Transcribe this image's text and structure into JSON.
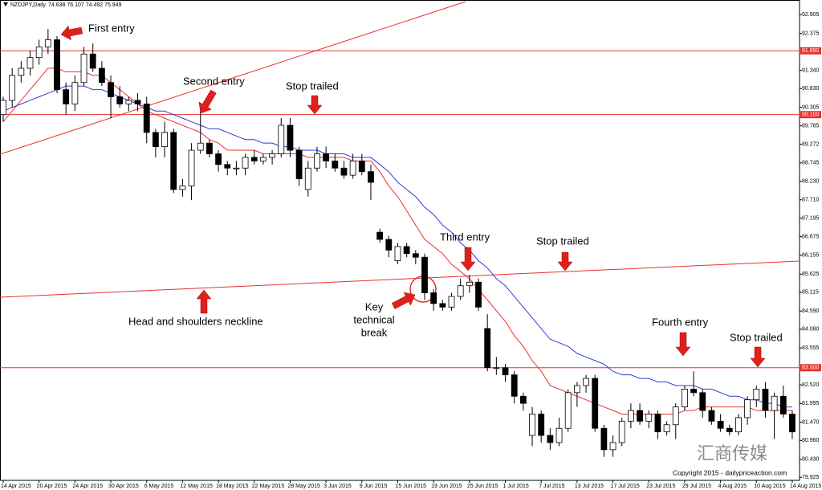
{
  "chart_data": {
    "type": "candlestick",
    "symbol": "NZDJPY,Daily",
    "quote": "74.638 76.107 74.492 75.949",
    "up_color": "#ffffff",
    "down_color": "#000000",
    "categories": [
      "14 Apr 2015",
      null,
      null,
      null,
      "20 Apr 2015",
      null,
      null,
      null,
      "24 Apr 2015",
      null,
      null,
      null,
      "30 Apr 2015",
      null,
      null,
      null,
      "6 May 2015",
      null,
      null,
      null,
      "12 May 2015",
      null,
      null,
      null,
      "18 May 2015",
      null,
      null,
      null,
      "22 May 2015",
      null,
      null,
      null,
      "28 May 2015",
      null,
      null,
      null,
      "3 Jun 2015",
      null,
      null,
      null,
      "9 Jun 2015",
      null,
      null,
      null,
      "15 Jun 2015",
      null,
      null,
      null,
      "19 Jun 2015",
      null,
      null,
      null,
      "25 Jun 2015",
      null,
      null,
      null,
      "1 Jul 2015",
      null,
      null,
      null,
      "7 Jul 2015",
      null,
      null,
      null,
      "13 Jul 2015",
      null,
      null,
      null,
      "17 Jul 2015",
      null,
      null,
      null,
      "23 Jul 2015",
      null,
      null,
      null,
      "29 Jul 2015",
      null,
      null,
      null,
      "4 Aug 2015",
      null,
      null,
      null,
      "10 Aug 2015",
      null,
      null,
      null,
      "14 Aug 2015"
    ],
    "ohlc": [
      [
        90.1,
        90.6,
        89.9,
        90.5
      ],
      [
        90.5,
        91.4,
        90.3,
        91.2
      ],
      [
        91.2,
        91.6,
        91.0,
        91.4
      ],
      [
        91.4,
        91.9,
        91.2,
        91.7
      ],
      [
        91.7,
        92.2,
        91.5,
        92.0
      ],
      [
        92.0,
        92.5,
        91.8,
        92.2
      ],
      [
        92.2,
        92.3,
        90.7,
        90.8
      ],
      [
        90.8,
        91.0,
        90.1,
        90.4
      ],
      [
        90.4,
        91.2,
        90.2,
        91.0
      ],
      [
        91.0,
        92.0,
        90.9,
        91.8
      ],
      [
        91.8,
        92.1,
        91.3,
        91.4
      ],
      [
        91.4,
        91.6,
        90.9,
        91.0
      ],
      [
        91.0,
        91.2,
        90.0,
        90.6
      ],
      [
        90.6,
        90.9,
        90.3,
        90.4
      ],
      [
        90.4,
        90.6,
        90.2,
        90.5
      ],
      [
        90.5,
        90.7,
        90.2,
        90.4
      ],
      [
        90.4,
        90.6,
        89.3,
        89.6
      ],
      [
        89.6,
        89.7,
        88.9,
        89.2
      ],
      [
        89.2,
        89.9,
        88.9,
        89.6
      ],
      [
        89.6,
        89.7,
        87.9,
        88.0
      ],
      [
        88.0,
        88.3,
        87.8,
        88.1
      ],
      [
        88.1,
        89.3,
        87.7,
        89.1
      ],
      [
        89.1,
        90.3,
        89.0,
        89.3
      ],
      [
        89.3,
        89.4,
        88.9,
        89.0
      ],
      [
        89.0,
        89.1,
        88.5,
        88.7
      ],
      [
        88.7,
        88.8,
        88.4,
        88.6
      ],
      [
        88.6,
        88.8,
        88.4,
        88.6
      ],
      [
        88.6,
        89.0,
        88.4,
        88.9
      ],
      [
        88.9,
        89.1,
        88.7,
        88.8
      ],
      [
        88.8,
        89.0,
        88.7,
        88.9
      ],
      [
        88.9,
        89.1,
        88.7,
        89.0
      ],
      [
        89.0,
        90.0,
        88.9,
        89.8
      ],
      [
        89.8,
        90.0,
        88.9,
        89.1
      ],
      [
        89.1,
        89.2,
        88.1,
        88.3
      ],
      [
        88.0,
        88.8,
        87.8,
        88.6
      ],
      [
        88.6,
        89.2,
        88.5,
        89.0
      ],
      [
        89.0,
        89.2,
        88.6,
        88.8
      ],
      [
        88.8,
        89.0,
        88.5,
        88.6
      ],
      [
        88.6,
        88.8,
        88.3,
        88.4
      ],
      [
        88.4,
        89.0,
        88.3,
        88.8
      ],
      [
        88.8,
        89.0,
        88.4,
        88.5
      ],
      [
        88.5,
        88.7,
        87.7,
        88.2
      ],
      [
        86.8,
        86.9,
        86.5,
        86.6
      ],
      [
        86.6,
        86.7,
        86.1,
        86.3
      ],
      [
        86.0,
        86.5,
        85.9,
        86.4
      ],
      [
        86.4,
        86.5,
        86.1,
        86.2
      ],
      [
        86.2,
        86.3,
        85.9,
        86.1
      ],
      [
        86.1,
        86.2,
        84.9,
        85.1
      ],
      [
        85.1,
        85.2,
        84.6,
        84.8
      ],
      [
        84.8,
        84.9,
        84.6,
        84.7
      ],
      [
        84.7,
        85.1,
        84.6,
        85.0
      ],
      [
        85.0,
        85.5,
        84.9,
        85.3
      ],
      [
        85.3,
        85.6,
        85.1,
        85.4
      ],
      [
        85.4,
        85.5,
        84.6,
        84.7
      ],
      [
        84.1,
        84.5,
        82.9,
        83.0
      ],
      [
        83.0,
        83.3,
        82.8,
        83.0
      ],
      [
        83.0,
        83.1,
        82.6,
        82.8
      ],
      [
        82.8,
        82.9,
        82.0,
        82.2
      ],
      [
        82.2,
        82.3,
        81.8,
        82.0
      ],
      [
        81.1,
        81.9,
        80.8,
        81.7
      ],
      [
        81.7,
        81.8,
        80.9,
        81.1
      ],
      [
        81.1,
        81.3,
        80.7,
        80.9
      ],
      [
        80.9,
        81.6,
        80.8,
        81.3
      ],
      [
        81.3,
        82.4,
        81.2,
        82.3
      ],
      [
        82.3,
        82.6,
        81.9,
        82.5
      ],
      [
        82.5,
        82.8,
        82.3,
        82.7
      ],
      [
        82.7,
        82.8,
        81.2,
        81.3
      ],
      [
        81.3,
        81.4,
        80.5,
        80.7
      ],
      [
        80.7,
        81.1,
        80.5,
        80.9
      ],
      [
        80.9,
        81.6,
        80.8,
        81.5
      ],
      [
        81.5,
        82.0,
        81.3,
        81.8
      ],
      [
        81.8,
        82.0,
        81.4,
        81.5
      ],
      [
        81.5,
        81.8,
        81.3,
        81.7
      ],
      [
        81.7,
        81.8,
        81.0,
        81.2
      ],
      [
        81.2,
        81.5,
        81.1,
        81.4
      ],
      [
        81.4,
        82.0,
        81.0,
        81.9
      ],
      [
        81.9,
        82.5,
        81.8,
        82.4
      ],
      [
        82.4,
        82.9,
        82.2,
        82.3
      ],
      [
        82.3,
        82.4,
        81.6,
        81.8
      ],
      [
        81.8,
        81.9,
        81.4,
        81.5
      ],
      [
        81.5,
        81.7,
        81.2,
        81.3
      ],
      [
        81.3,
        81.4,
        81.1,
        81.2
      ],
      [
        81.2,
        81.7,
        81.1,
        81.6
      ],
      [
        81.6,
        82.2,
        81.4,
        82.1
      ],
      [
        82.1,
        82.5,
        81.9,
        82.4
      ],
      [
        82.4,
        82.6,
        81.6,
        81.8
      ],
      [
        81.8,
        82.3,
        81.0,
        82.2
      ],
      [
        82.2,
        82.5,
        81.6,
        81.7
      ],
      [
        81.7,
        81.8,
        81.0,
        81.2
      ]
    ],
    "lines": [
      {
        "color": "#e8322c",
        "values": [
          89.9,
          90.2,
          90.5,
          90.8,
          91.1,
          91.4,
          91.4,
          91.3,
          91.3,
          91.3,
          91.2,
          91.2,
          91.0,
          90.8,
          90.6,
          90.4,
          90.2,
          90.1,
          90.0,
          89.9,
          89.8,
          89.7,
          89.6,
          89.4,
          89.3,
          89.1,
          89.1,
          89.1,
          89.1,
          89.0,
          89.0,
          89.0,
          89.0,
          89.0,
          88.9,
          88.9,
          88.9,
          88.9,
          88.9,
          88.8,
          88.8,
          88.8,
          88.5,
          88.1,
          87.8,
          87.4,
          87.0,
          86.6,
          86.4,
          86.2,
          85.9,
          85.7,
          85.5,
          85.2,
          84.9,
          84.6,
          84.3,
          83.9,
          83.6,
          83.2,
          82.9,
          82.5,
          82.4,
          82.3,
          82.2,
          82.1,
          82.0,
          81.9,
          81.8,
          81.7,
          81.7,
          81.7,
          81.7,
          81.7,
          81.7,
          81.7,
          81.8,
          81.8,
          81.9,
          81.9,
          81.9,
          81.9,
          81.9,
          81.9,
          81.8,
          81.8,
          81.8,
          81.8,
          81.8
        ]
      },
      {
        "color": "#2b3fd6",
        "values": [
          90.2,
          90.3,
          90.4,
          90.5,
          90.6,
          90.7,
          90.8,
          90.9,
          90.9,
          90.9,
          90.8,
          90.8,
          90.7,
          90.6,
          90.5,
          90.4,
          90.3,
          90.2,
          90.2,
          90.1,
          90.0,
          89.9,
          89.8,
          89.7,
          89.7,
          89.6,
          89.5,
          89.4,
          89.4,
          89.3,
          89.3,
          89.2,
          89.2,
          89.1,
          89.1,
          89.1,
          89.0,
          89.0,
          89.0,
          88.9,
          88.9,
          88.9,
          88.7,
          88.5,
          88.2,
          88.0,
          87.8,
          87.5,
          87.3,
          87.0,
          86.8,
          86.5,
          86.3,
          86.0,
          85.8,
          85.5,
          85.3,
          85.0,
          84.7,
          84.4,
          84.1,
          83.8,
          83.7,
          83.6,
          83.4,
          83.3,
          83.2,
          83.1,
          82.9,
          82.8,
          82.8,
          82.7,
          82.7,
          82.6,
          82.6,
          82.5,
          82.5,
          82.5,
          82.4,
          82.4,
          82.3,
          82.2,
          82.2,
          82.1,
          82.1,
          82.0,
          82.0,
          81.9,
          81.9
        ]
      }
    ],
    "hlines": [
      {
        "value": 91.89,
        "label": "91.890",
        "color": "#e8322c"
      },
      {
        "value": 90.1,
        "label": "90.100",
        "color": "#e8322c"
      },
      {
        "value": 83,
        "label": "83.000",
        "color": "#e8322c"
      }
    ],
    "ylim": [
      79.84,
      93.27
    ],
    "yticks": [
      92.905,
      92.375,
      {
        "value": 91.34,
        "label": "91.340"
      },
      {
        "value": 90.83,
        "label": "90.830"
      },
      90.305,
      89.785,
      89.272,
      88.745,
      {
        "value": 88.23,
        "label": "88.230"
      },
      {
        "value": 87.71,
        "label": "87.710"
      },
      87.195,
      86.675,
      86.155,
      85.625,
      85.115,
      {
        "value": 84.59,
        "label": "84.590"
      },
      {
        "value": 84.08,
        "label": "84.080"
      },
      83.555,
      {
        "value": 82.52,
        "label": "82.520"
      },
      81.995,
      {
        "value": 81.47,
        "label": "81.470"
      },
      {
        "value": 80.96,
        "label": "80.960"
      },
      {
        "value": 80.43,
        "label": "80.430"
      },
      79.925
    ],
    "annotations": [
      "First entry",
      "Second entry",
      "Stop trailed",
      "Third entry",
      "Stop trailed",
      "Head and shoulders neckline",
      "Key",
      "technical",
      "break",
      "Fourth entry",
      "Stop trailed",
      "汇商传媒",
      "Copyright 2015 - dailypriceaction.com"
    ]
  }
}
